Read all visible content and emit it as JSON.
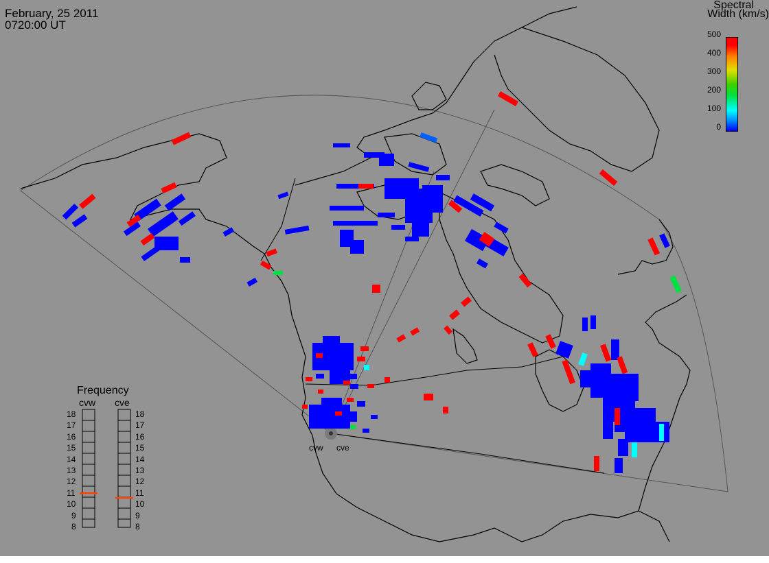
{
  "header": {
    "date": "February, 25 2011",
    "time": "0720:00 UT"
  },
  "colorbar": {
    "title_line1": "Spectral",
    "title_line2": "Width (km/s)",
    "ticks": [
      "500",
      "400",
      "300",
      "200",
      "100",
      "0"
    ],
    "range": [
      0,
      500
    ],
    "colors": [
      "#0000ff",
      "#00ffff",
      "#00e040",
      "#e0e000",
      "#ff8000",
      "#ff0000"
    ]
  },
  "frequency": {
    "title": "Frequency",
    "radars": [
      {
        "name": "cvw",
        "value_mhz": 10.9
      },
      {
        "name": "cve",
        "value_mhz": 10.5
      }
    ],
    "scale": [
      "18",
      "17",
      "16",
      "15",
      "14",
      "13",
      "12",
      "11",
      "10",
      "9",
      "8"
    ]
  },
  "sites": {
    "west": "cvw",
    "east": "cve"
  },
  "map": {
    "background": "#939393",
    "coast_color": "#000000",
    "fov_color": "#555555"
  }
}
